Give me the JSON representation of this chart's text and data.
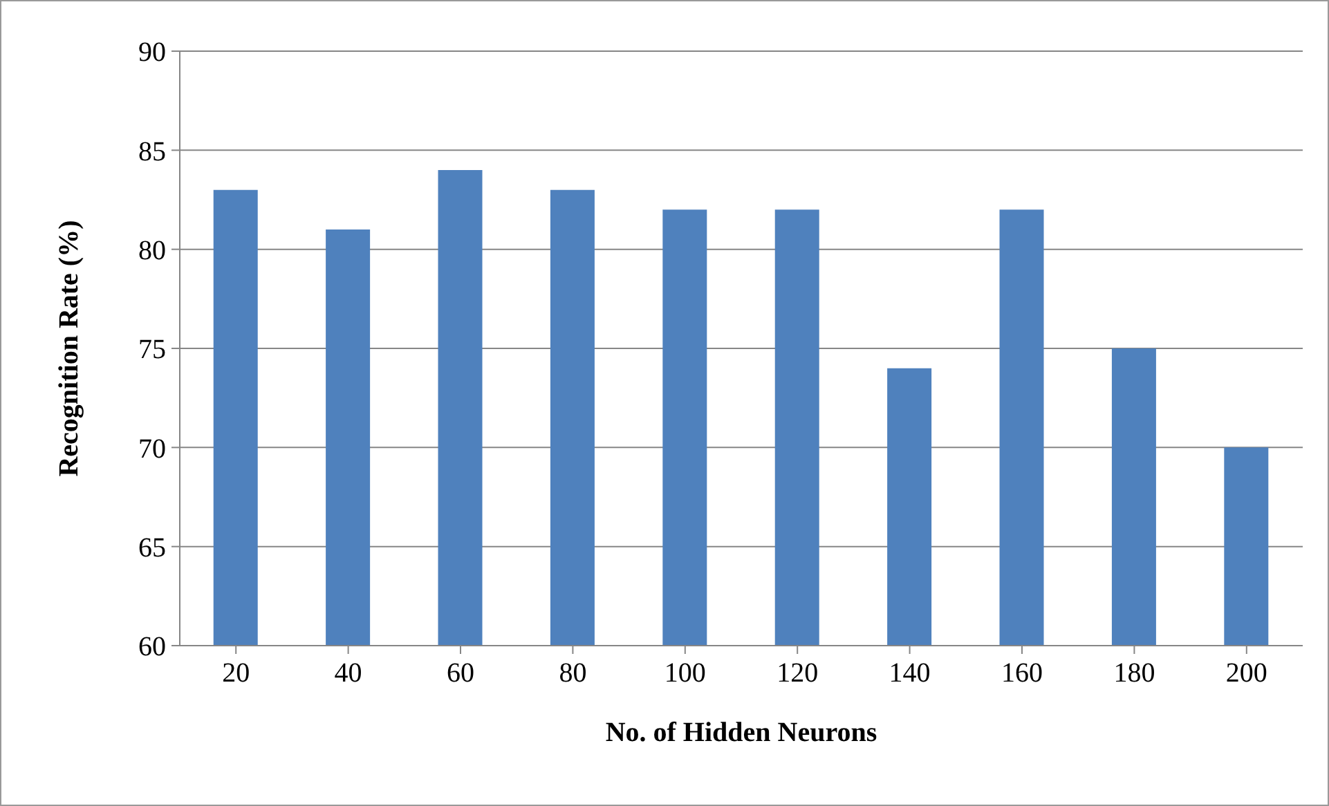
{
  "chart_data": {
    "type": "bar",
    "xlabel": "No. of Hidden Neurons",
    "ylabel": "Recognition Rate (%)",
    "categories": [
      "20",
      "40",
      "60",
      "80",
      "100",
      "120",
      "140",
      "160",
      "180",
      "200"
    ],
    "values": [
      83,
      81,
      84,
      83,
      82,
      82,
      74,
      82,
      75,
      70
    ],
    "color": "#4f81bd",
    "ylim": [
      60,
      90
    ],
    "yticks": [
      60,
      65,
      70,
      75,
      80,
      85,
      90
    ],
    "grid": "y"
  }
}
